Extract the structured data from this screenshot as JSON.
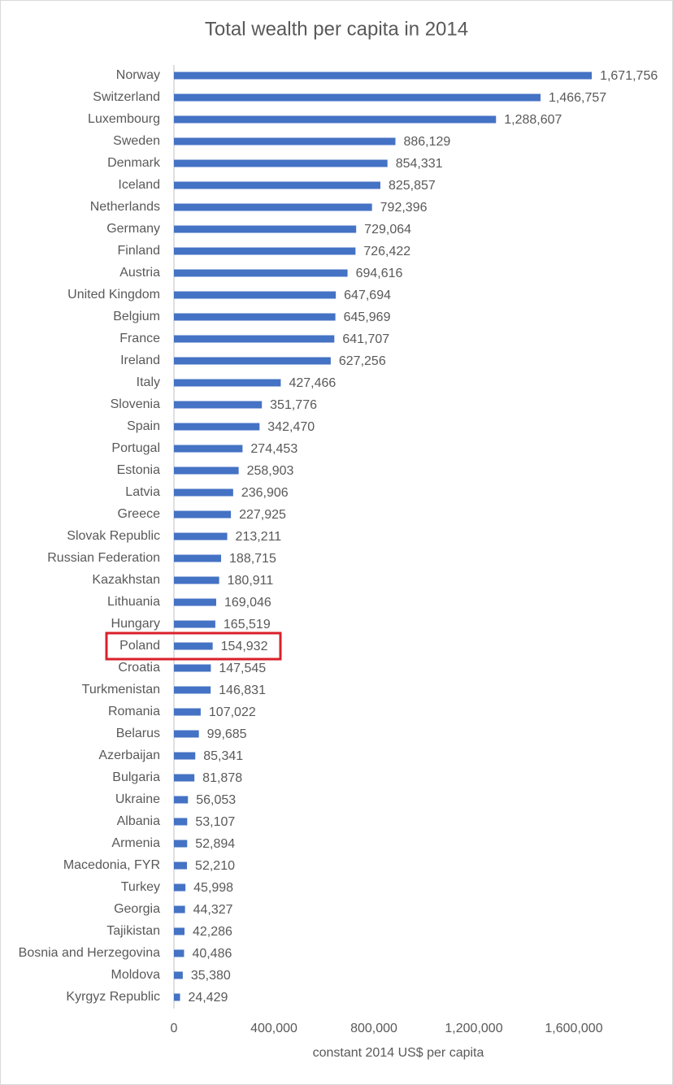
{
  "chart_data": {
    "type": "bar",
    "orientation": "horizontal",
    "title": "Total wealth per capita in 2014",
    "x_label": "constant 2014 US$ per capita",
    "categories": [
      "Norway",
      "Switzerland",
      "Luxembourg",
      "Sweden",
      "Denmark",
      "Iceland",
      "Netherlands",
      "Germany",
      "Finland",
      "Austria",
      "United Kingdom",
      "Belgium",
      "France",
      "Ireland",
      "Italy",
      "Slovenia",
      "Spain",
      "Portugal",
      "Estonia",
      "Latvia",
      "Greece",
      "Slovak Republic",
      "Russian Federation",
      "Kazakhstan",
      "Lithuania",
      "Hungary",
      "Poland",
      "Croatia",
      "Turkmenistan",
      "Romania",
      "Belarus",
      "Azerbaijan",
      "Bulgaria",
      "Ukraine",
      "Albania",
      "Armenia",
      "Macedonia, FYR",
      "Turkey",
      "Georgia",
      "Tajikistan",
      "Bosnia and Herzegovina",
      "Moldova",
      "Kyrgyz Republic"
    ],
    "values": [
      1671756,
      1466757,
      1288607,
      886129,
      854331,
      825857,
      792396,
      729064,
      726422,
      694616,
      647694,
      645969,
      641707,
      627256,
      427466,
      351776,
      342470,
      274453,
      258903,
      236906,
      227925,
      213211,
      188715,
      180911,
      169046,
      165519,
      154932,
      147545,
      146831,
      107022,
      99685,
      85341,
      81878,
      56053,
      53107,
      52894,
      52210,
      45998,
      44327,
      42286,
      40486,
      35380,
      24429
    ],
    "value_labels": [
      "1,671,756",
      "1,466,757",
      "1,288,607",
      "886,129",
      "854,331",
      "825,857",
      "792,396",
      "729,064",
      "726,422",
      "694,616",
      "647,694",
      "645,969",
      "641,707",
      "627,256",
      "427,466",
      "351,776",
      "342,470",
      "274,453",
      "258,903",
      "236,906",
      "227,925",
      "213,211",
      "188,715",
      "180,911",
      "169,046",
      "165,519",
      "154,932",
      "147,545",
      "146,831",
      "107,022",
      "99,685",
      "85,341",
      "81,878",
      "56,053",
      "53,107",
      "52,894",
      "52,210",
      "45,998",
      "44,327",
      "42,286",
      "40,486",
      "35,380",
      "24,429"
    ],
    "color": "#4472c4",
    "xlim": [
      0,
      1800000
    ],
    "xticks": [
      0,
      {
        "value": 400000,
        "label": "400,000"
      },
      {
        "value": 800000,
        "label": "800,000"
      },
      {
        "value": 1200000,
        "label": "1,200,000"
      },
      {
        "value": 1600000,
        "label": "1,600,000"
      }
    ],
    "grid": false
  }
}
